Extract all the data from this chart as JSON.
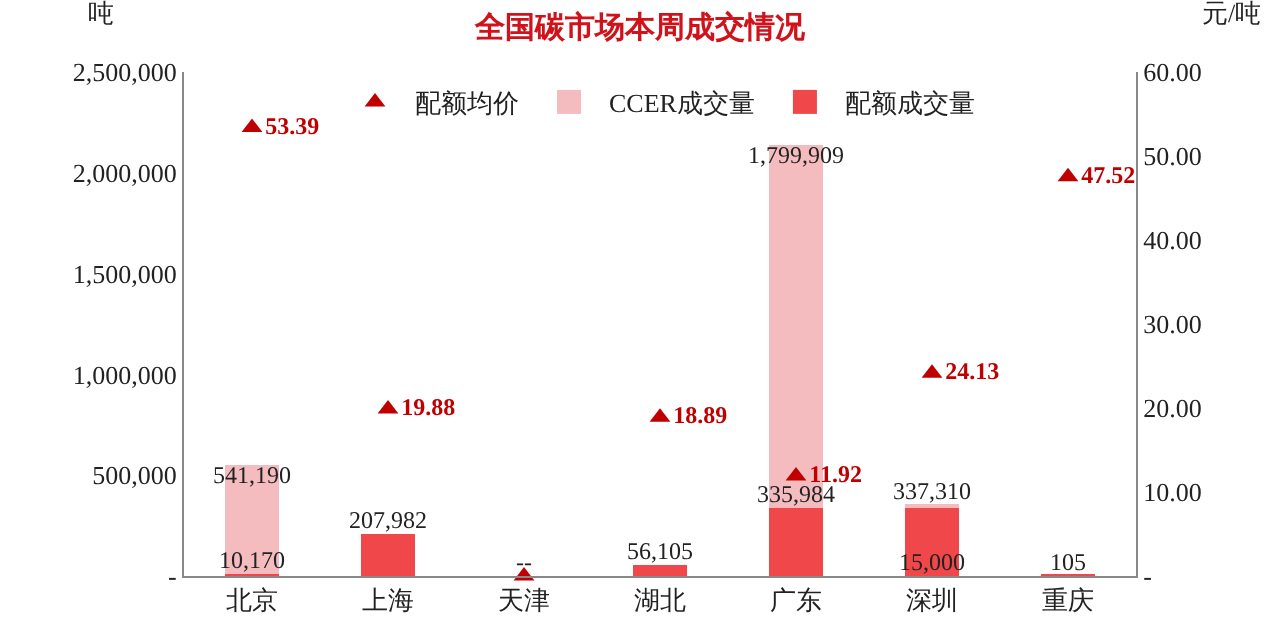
{
  "chart_data": {
    "type": "bar",
    "stacked": true,
    "title": "全国碳市场本周成交情况",
    "ylabel": "吨",
    "y2label": "元/吨",
    "categories": [
      "北京",
      "上海",
      "天津",
      "湖北",
      "广东",
      "深圳",
      "重庆"
    ],
    "series": [
      {
        "name": "配额成交量",
        "color": "#f0474a",
        "values": [
          10170,
          207982,
          0,
          56105,
          335984,
          337310,
          105
        ],
        "value_labels": [
          "10,170",
          "207,982",
          "-",
          "56,105",
          "335,984",
          "337,310",
          "105"
        ]
      },
      {
        "name": "CCER成交量",
        "color": "#f5bcc0",
        "values": [
          541190,
          null,
          0,
          null,
          1799909,
          15000,
          null
        ],
        "value_labels": [
          "541,190",
          null,
          "-",
          null,
          "1,799,909",
          "15,000",
          null
        ]
      },
      {
        "name": "配额均价",
        "type": "scatter",
        "axis": "y2",
        "marker": "triangle",
        "color": "#c00000",
        "values": [
          53.39,
          19.88,
          0,
          18.89,
          11.92,
          24.13,
          47.52
        ],
        "value_labels": [
          "53.39",
          "19.88",
          null,
          "18.89",
          "11.92",
          "24.13",
          "47.52"
        ]
      }
    ],
    "ylim": [
      0,
      2500000
    ],
    "yticks": [
      {
        "value": 0,
        "label": "-"
      },
      {
        "value": 500000,
        "label": "500,000"
      },
      {
        "value": 1000000,
        "label": "1,000,000"
      },
      {
        "value": 1500000,
        "label": "1,500,000"
      },
      {
        "value": 2000000,
        "label": "2,000,000"
      },
      {
        "value": 2500000,
        "label": "2,500,000"
      }
    ],
    "y2lim": [
      0,
      60
    ],
    "y2ticks": [
      {
        "value": 0,
        "label": "-"
      },
      {
        "value": 10,
        "label": "10.00"
      },
      {
        "value": 20,
        "label": "20.00"
      },
      {
        "value": 30,
        "label": "30.00"
      },
      {
        "value": 40,
        "label": "40.00"
      },
      {
        "value": 50,
        "label": "50.00"
      },
      {
        "value": 60,
        "label": "60.00"
      }
    ],
    "grid": false,
    "legend": "top"
  }
}
